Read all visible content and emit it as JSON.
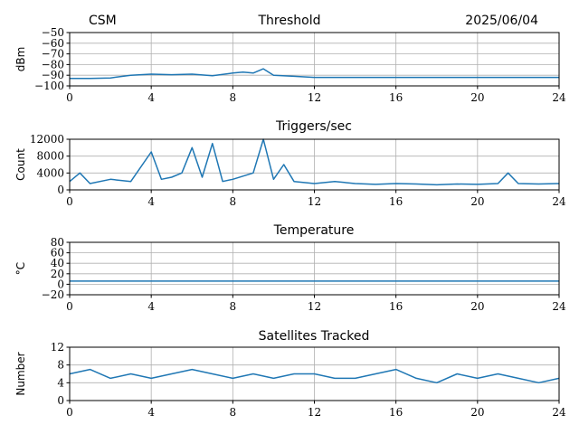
{
  "header": {
    "left": "CSM",
    "center": "Threshold",
    "right": "2025/06/04"
  },
  "colors": {
    "series": "#1f77b4",
    "grid": "#b0b0b0"
  },
  "chart_data": [
    {
      "type": "line",
      "title": "",
      "ylabel": "dBm",
      "xlim": [
        0,
        24
      ],
      "ylim": [
        -100,
        -50
      ],
      "xticks": [
        0,
        4,
        8,
        12,
        16,
        20,
        24
      ],
      "yticks": [
        -100,
        -90,
        -80,
        -70,
        -60,
        -50
      ],
      "grid": true,
      "series_points": [
        [
          0,
          -93
        ],
        [
          1,
          -93
        ],
        [
          2,
          -92.5
        ],
        [
          3,
          -90
        ],
        [
          4,
          -89
        ],
        [
          5,
          -89.5
        ],
        [
          6,
          -89
        ],
        [
          7,
          -90.5
        ],
        [
          8,
          -88
        ],
        [
          8.5,
          -87
        ],
        [
          9,
          -88
        ],
        [
          9.5,
          -84
        ],
        [
          10,
          -90
        ],
        [
          11,
          -91
        ],
        [
          12,
          -92
        ],
        [
          14,
          -92
        ],
        [
          16,
          -92
        ],
        [
          20,
          -92
        ],
        [
          24,
          -92
        ]
      ]
    },
    {
      "type": "line",
      "title": "Triggers/sec",
      "ylabel": "Count",
      "xlim": [
        0,
        24
      ],
      "ylim": [
        0,
        12000
      ],
      "xticks": [
        0,
        4,
        8,
        12,
        16,
        20,
        24
      ],
      "yticks": [
        0,
        4000,
        8000,
        12000
      ],
      "grid": true,
      "series_points": [
        [
          0,
          2000
        ],
        [
          0.5,
          4000
        ],
        [
          1,
          1500
        ],
        [
          2,
          2500
        ],
        [
          3,
          2000
        ],
        [
          4,
          9000
        ],
        [
          4.5,
          2500
        ],
        [
          5,
          3000
        ],
        [
          5.5,
          4000
        ],
        [
          6,
          10000
        ],
        [
          6.5,
          3000
        ],
        [
          7,
          11000
        ],
        [
          7.5,
          2000
        ],
        [
          8,
          2500
        ],
        [
          9,
          4000
        ],
        [
          9.5,
          12000
        ],
        [
          10,
          2500
        ],
        [
          10.5,
          6000
        ],
        [
          11,
          2000
        ],
        [
          12,
          1500
        ],
        [
          13,
          2000
        ],
        [
          14,
          1500
        ],
        [
          15,
          1300
        ],
        [
          16,
          1500
        ],
        [
          17,
          1400
        ],
        [
          18,
          1200
        ],
        [
          19,
          1400
        ],
        [
          20,
          1300
        ],
        [
          21,
          1500
        ],
        [
          21.5,
          4000
        ],
        [
          22,
          1500
        ],
        [
          23,
          1400
        ],
        [
          24,
          1500
        ]
      ]
    },
    {
      "type": "line",
      "title": "Temperature",
      "ylabel": "°C",
      "xlim": [
        0,
        24
      ],
      "ylim": [
        -20,
        80
      ],
      "xticks": [
        0,
        4,
        8,
        12,
        16,
        20,
        24
      ],
      "yticks": [
        -20,
        0,
        20,
        40,
        60,
        80
      ],
      "grid": true,
      "series_points": [
        [
          0,
          6
        ],
        [
          24,
          6
        ]
      ]
    },
    {
      "type": "line",
      "title": "Satellites Tracked",
      "ylabel": "Number",
      "xlim": [
        0,
        24
      ],
      "ylim": [
        0,
        12
      ],
      "xticks": [
        0,
        4,
        8,
        12,
        16,
        20,
        24
      ],
      "yticks": [
        0,
        4,
        8,
        12
      ],
      "grid": true,
      "series_points": [
        [
          0,
          6
        ],
        [
          1,
          7
        ],
        [
          2,
          5
        ],
        [
          3,
          6
        ],
        [
          4,
          5
        ],
        [
          5,
          6
        ],
        [
          6,
          7
        ],
        [
          7,
          6
        ],
        [
          8,
          5
        ],
        [
          9,
          6
        ],
        [
          10,
          5
        ],
        [
          11,
          6
        ],
        [
          12,
          6
        ],
        [
          13,
          5
        ],
        [
          14,
          5
        ],
        [
          15,
          6
        ],
        [
          16,
          7
        ],
        [
          17,
          5
        ],
        [
          18,
          4
        ],
        [
          19,
          6
        ],
        [
          20,
          5
        ],
        [
          21,
          6
        ],
        [
          22,
          5
        ],
        [
          23,
          4
        ],
        [
          24,
          5
        ]
      ]
    }
  ]
}
